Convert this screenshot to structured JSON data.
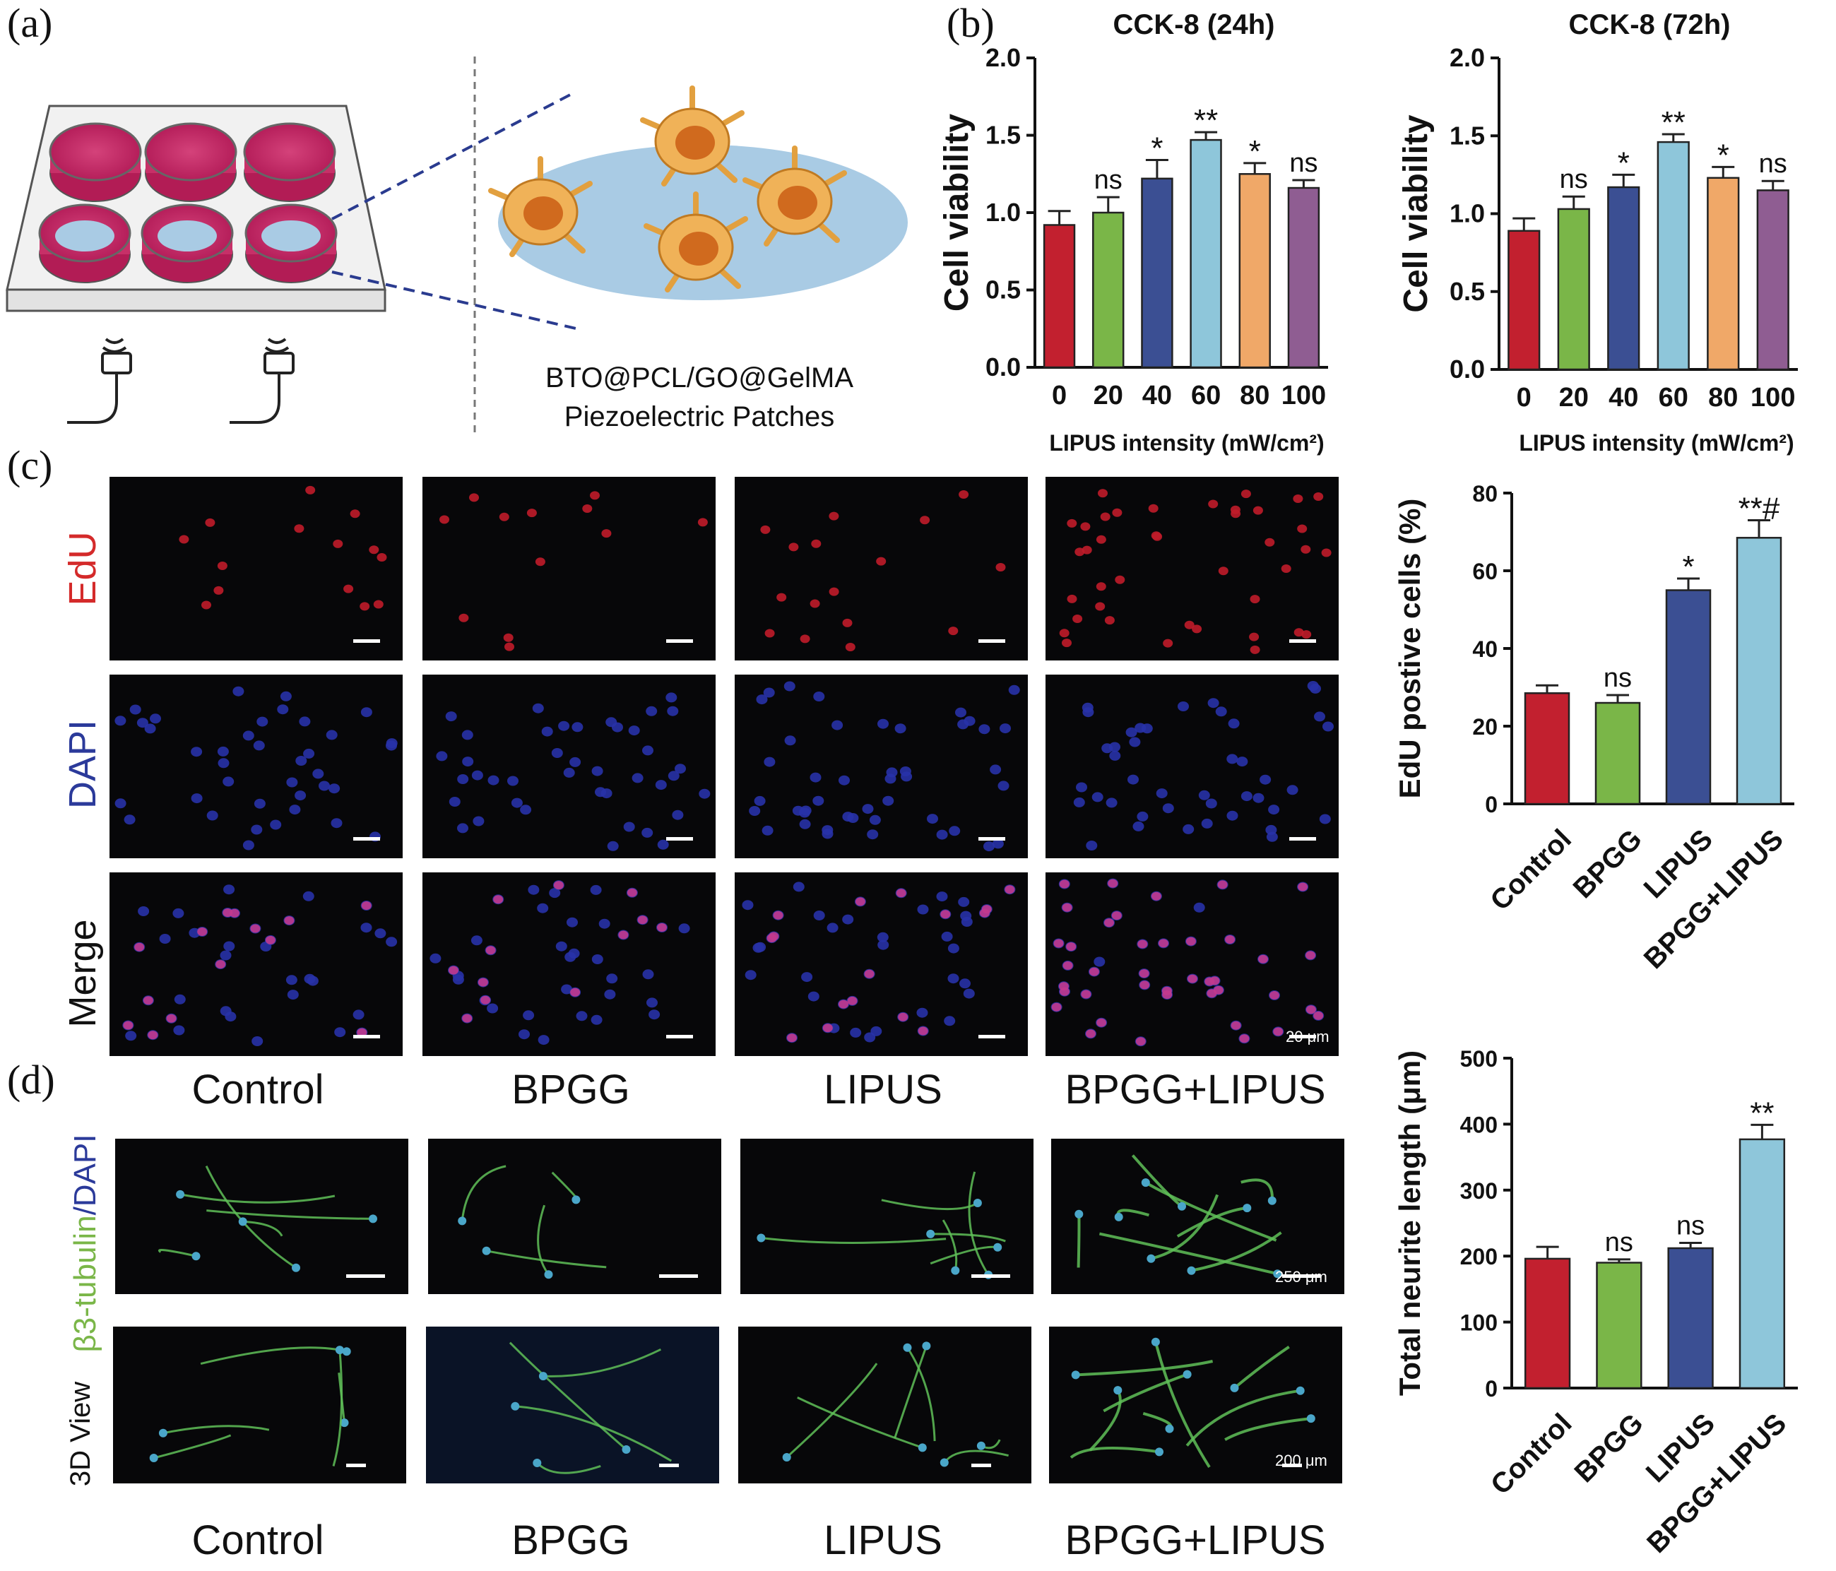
{
  "panels": {
    "a": "(a)",
    "b": "(b)",
    "c": "(c)",
    "d": "(d)"
  },
  "schematic": {
    "patch_line1": "BTO@PCL/GO@GelMA",
    "patch_line2": "Piezoelectric Patches"
  },
  "micrographs": {
    "row_labels_c": [
      "EdU",
      "DAPI",
      "Merge"
    ],
    "row_label_colors": [
      "#d42a2a",
      "#2b3a9a",
      "#111111"
    ],
    "row_label_d1a": "β3-tubulin",
    "row_label_d1b": "/DAPI",
    "row_label_d2": "3D View",
    "scalebar_c": "20 μm",
    "scalebar_d1": "250 μm",
    "scalebar_d2": "200 μm",
    "groups_c": [
      "Control",
      "BPGG",
      "LIPUS",
      "BPGG+LIPUS"
    ],
    "groups_d": [
      "Control",
      "BPGG",
      "LIPUS",
      "BPGG+LIPUS"
    ]
  },
  "chart_data": [
    {
      "type": "bar",
      "title": "CCK-8 (24h)",
      "xlabel": "LIPUS intensity (mW/cm²)",
      "ylabel": "Cell viability",
      "categories": [
        "0",
        "20",
        "40",
        "60",
        "80",
        "100"
      ],
      "values": [
        0.92,
        1.0,
        1.22,
        1.47,
        1.25,
        1.16
      ],
      "errors": [
        0.09,
        0.1,
        0.12,
        0.05,
        0.07,
        0.05
      ],
      "annotations": [
        "",
        "ns",
        "*",
        "**",
        "*",
        "ns"
      ],
      "ylim": [
        0,
        2.0
      ],
      "yticks": [
        "0.0",
        "0.5",
        "1.0",
        "1.5",
        "2.0"
      ],
      "colors": [
        "#c2202f",
        "#7ab648",
        "#3b4f93",
        "#8ec6da",
        "#f0a868",
        "#8f5d92"
      ]
    },
    {
      "type": "bar",
      "title": "CCK-8 (72h)",
      "xlabel": "LIPUS intensity (mW/cm²)",
      "ylabel": "Cell viability",
      "categories": [
        "0",
        "20",
        "40",
        "60",
        "80",
        "100"
      ],
      "values": [
        0.89,
        1.03,
        1.17,
        1.46,
        1.23,
        1.15
      ],
      "errors": [
        0.08,
        0.08,
        0.08,
        0.05,
        0.07,
        0.06
      ],
      "annotations": [
        "",
        "ns",
        "*",
        "**",
        "*",
        "ns"
      ],
      "ylim": [
        0,
        2.0
      ],
      "yticks": [
        "0.0",
        "0.5",
        "1.0",
        "1.5",
        "2.0"
      ],
      "colors": [
        "#c2202f",
        "#7ab648",
        "#3b4f93",
        "#8ec6da",
        "#f0a868",
        "#8f5d92"
      ]
    },
    {
      "type": "bar",
      "title": "",
      "xlabel": "",
      "ylabel": "EdU postive cells (%)",
      "categories": [
        "Control",
        "BPGG",
        "LIPUS",
        "BPGG+LIPUS"
      ],
      "values": [
        28.5,
        26,
        55,
        68.5
      ],
      "errors": [
        2,
        2,
        3,
        4.5
      ],
      "annotations": [
        "",
        "ns",
        "*",
        "**#"
      ],
      "ylim": [
        0,
        80
      ],
      "yticks": [
        "0",
        "20",
        "40",
        "60",
        "80"
      ],
      "colors": [
        "#c2202f",
        "#7ab648",
        "#3b4f93",
        "#8ec6da"
      ]
    },
    {
      "type": "bar",
      "title": "",
      "xlabel": "",
      "ylabel": "Total neurite length (μm)",
      "categories": [
        "Control",
        "BPGG",
        "LIPUS",
        "BPGG+LIPUS"
      ],
      "values": [
        196,
        190,
        212,
        377
      ],
      "errors": [
        18,
        5,
        8,
        22
      ],
      "annotations": [
        "",
        "ns",
        "ns",
        "**"
      ],
      "ylim": [
        0,
        500
      ],
      "yticks": [
        "0",
        "100",
        "200",
        "300",
        "400",
        "500"
      ],
      "colors": [
        "#c2202f",
        "#7ab648",
        "#3b4f93",
        "#8ec6da"
      ]
    }
  ]
}
